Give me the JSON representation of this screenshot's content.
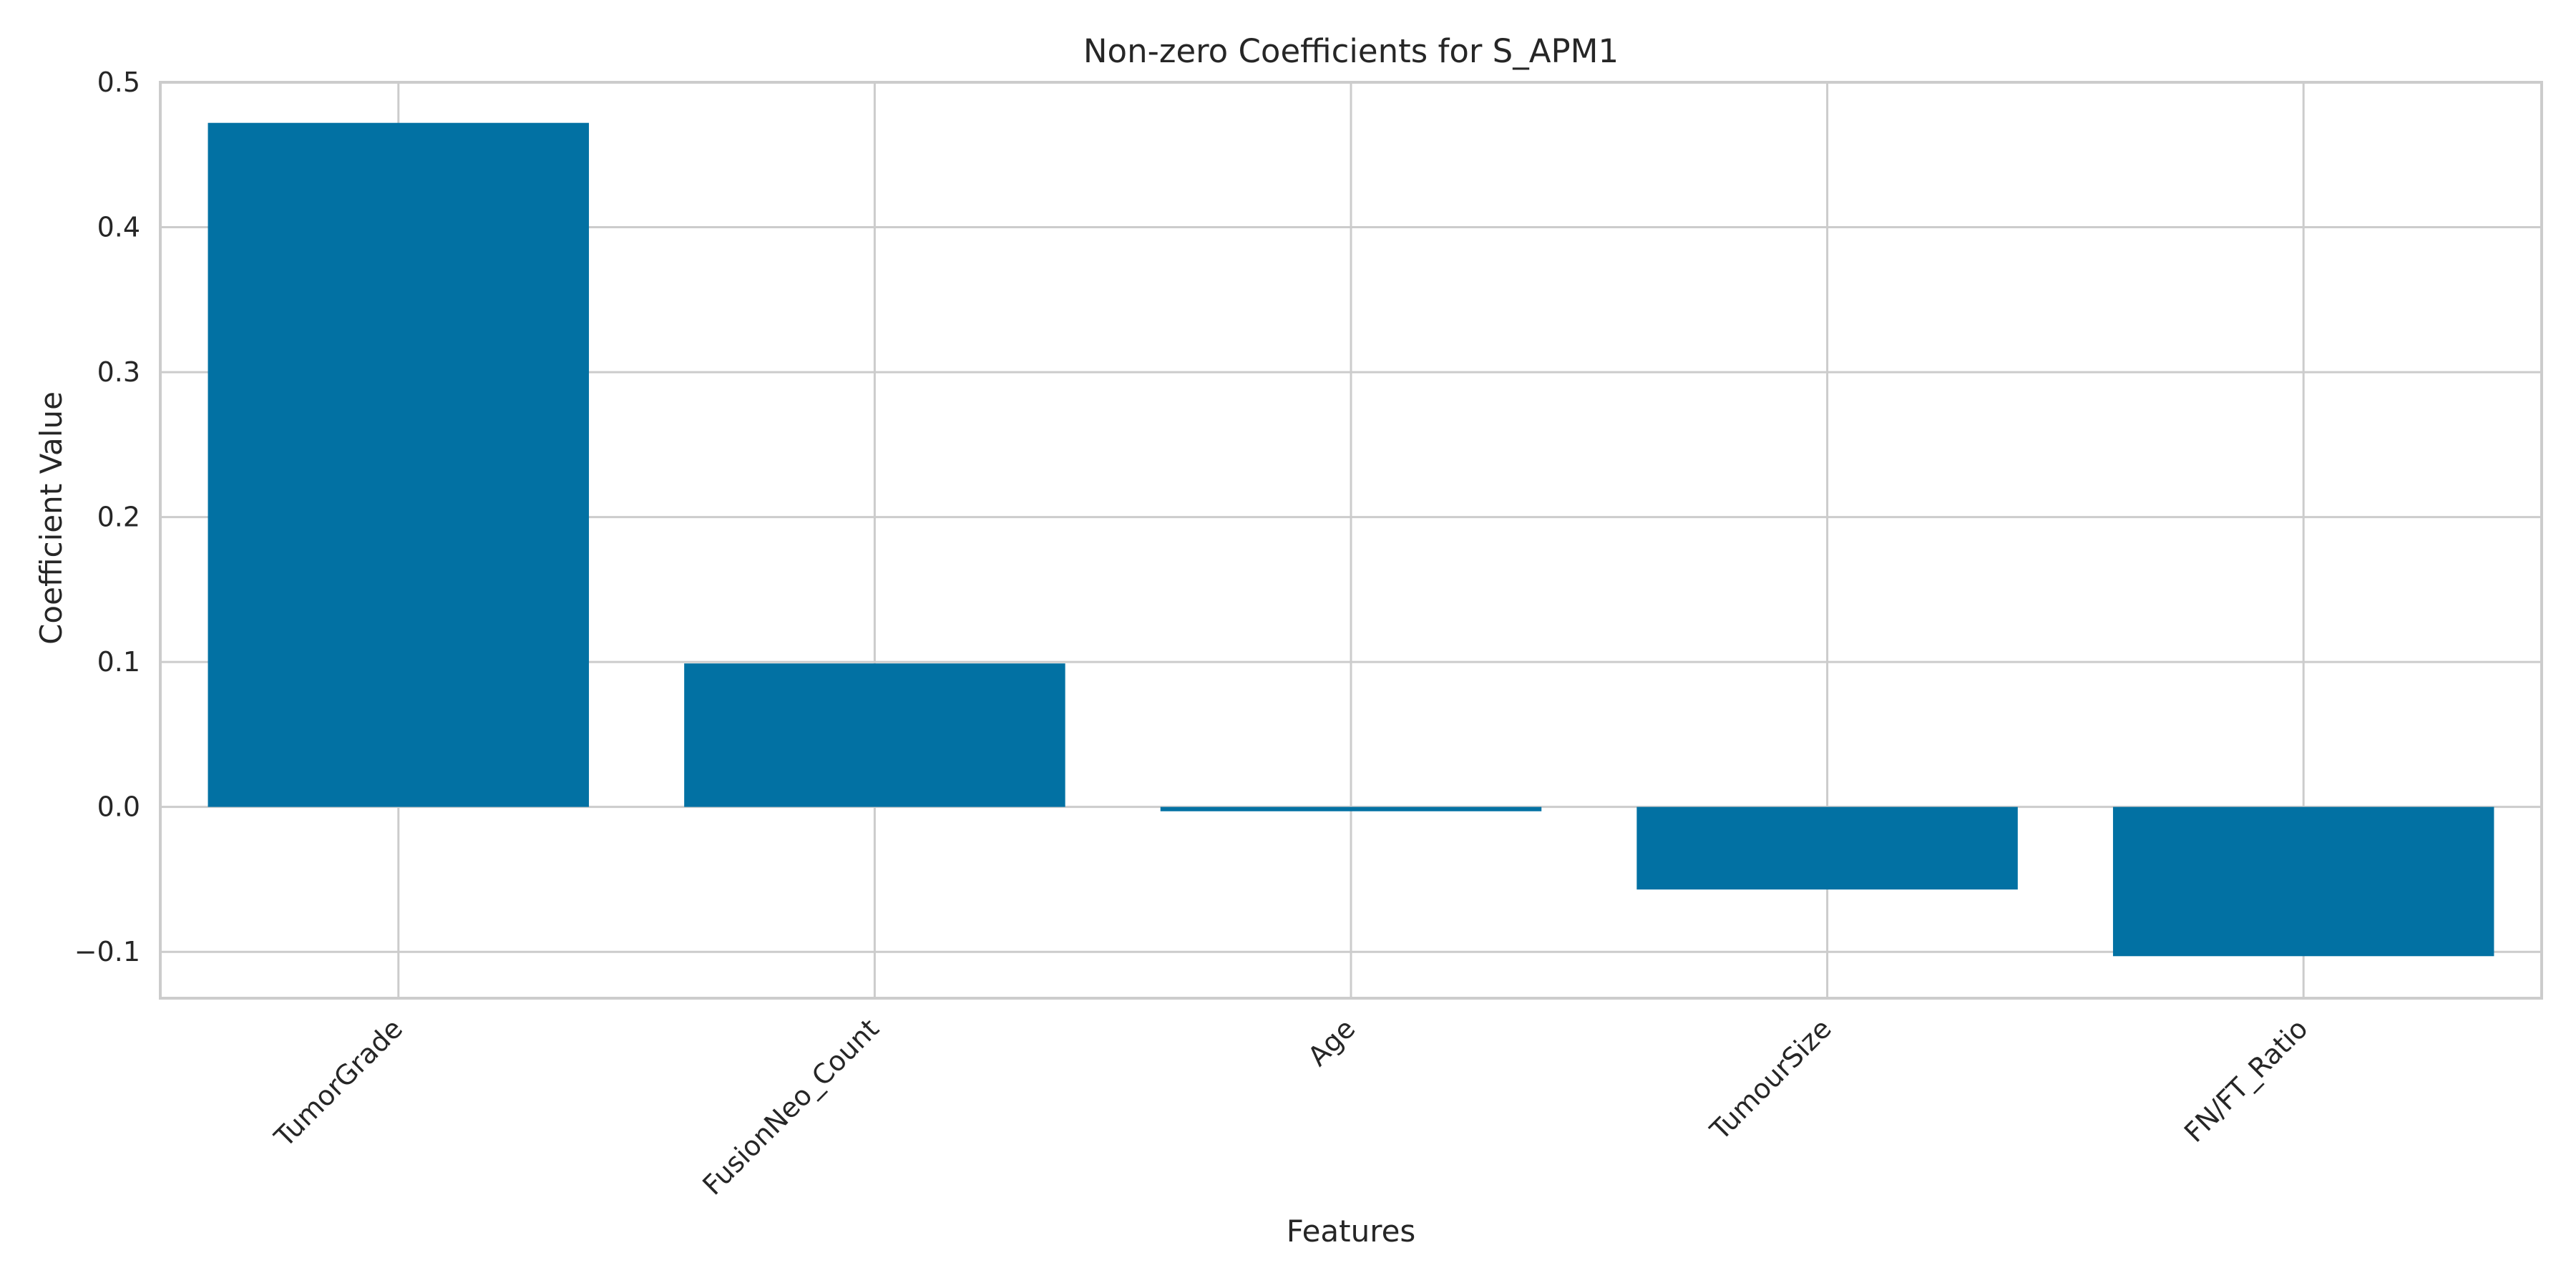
{
  "chart_data": {
    "type": "bar",
    "title": "Non-zero Coefficients for S_APM1",
    "xlabel": "Features",
    "ylabel": "Coefficient Value",
    "categories": [
      "TumorGrade",
      "FusionNeo_Count",
      "Age",
      "TumourSize",
      "FN/FT_Ratio"
    ],
    "values": [
      0.472,
      0.099,
      -0.003,
      -0.057,
      -0.103
    ],
    "ylim": [
      -0.132,
      0.5
    ],
    "yticks": [
      -0.1,
      0.0,
      0.1,
      0.2,
      0.3,
      0.4,
      0.5
    ],
    "ytick_labels": [
      "−0.1",
      "0.0",
      "0.1",
      "0.2",
      "0.3",
      "0.4",
      "0.5"
    ],
    "grid": true,
    "legend": false,
    "bar_color": "#0271a3",
    "grid_color": "#cccccc",
    "spine_color": "#cccccc",
    "text_color": "#262626"
  }
}
